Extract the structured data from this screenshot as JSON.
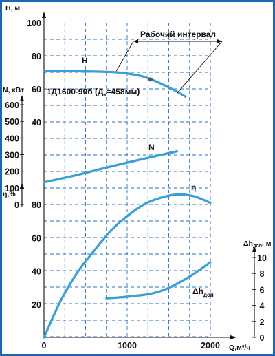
{
  "chart_data": {
    "type": "line",
    "model_label": "1Д1600-90б (Д",
    "model_sub": "к",
    "model_tail": "=458мм)",
    "work_interval_label": "Рабочий интервал",
    "x_axis": {
      "label": "Q,м³/ч",
      "ticks": [
        0,
        1000,
        2000
      ],
      "range": [
        0,
        2000
      ]
    },
    "axes": {
      "H": {
        "label": "H, м",
        "ticks": [
          40,
          60,
          80,
          100
        ],
        "range": [
          40,
          100
        ]
      },
      "N": {
        "label": "N, кВт",
        "ticks": [
          0,
          100,
          200,
          300,
          400,
          500,
          600
        ],
        "range": [
          0,
          600
        ]
      },
      "eta": {
        "label": "η,%",
        "ticks": [
          0,
          20,
          40,
          60,
          80
        ],
        "range": [
          0,
          80
        ]
      },
      "dh": {
        "label": "Δh",
        "label_sub": "доп",
        "label_unit": ", м",
        "ticks": [
          0,
          2,
          4,
          6,
          8,
          10
        ],
        "range": [
          0,
          10
        ]
      }
    },
    "series": [
      {
        "name": "H",
        "axis": "H",
        "x": [
          0,
          400,
          800,
          1000,
          1200,
          1400,
          1600,
          1700
        ],
        "y": [
          71,
          70.7,
          70.2,
          69.3,
          67.3,
          63.3,
          58.3,
          55.3
        ]
      },
      {
        "name": "N",
        "axis": "N",
        "x": [
          0,
          400,
          800,
          1200,
          1600
        ],
        "y": [
          133,
          178,
          228,
          275,
          320
        ]
      },
      {
        "name": "η",
        "axis": "eta",
        "x": [
          0,
          200,
          400,
          600,
          800,
          1000,
          1200,
          1400,
          1600,
          1800,
          2000
        ],
        "y": [
          0,
          22,
          39,
          52,
          64,
          73,
          80,
          84,
          86,
          85,
          81
        ]
      },
      {
        "name": "Δh",
        "name_sub": "доп",
        "axis": "dh",
        "x": [
          750,
          900,
          1100,
          1300,
          1500,
          1700,
          1850,
          2000
        ],
        "y": [
          4.9,
          5.0,
          5.2,
          5.5,
          6.2,
          7.3,
          8.3,
          9.4
        ]
      }
    ],
    "work_interval": {
      "x": [
        1300,
        1700
      ]
    },
    "grid": true
  }
}
